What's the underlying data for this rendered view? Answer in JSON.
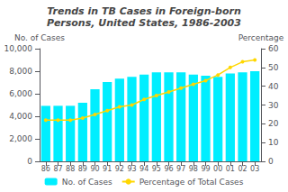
{
  "chart_data": {
    "type": "bar",
    "title": "Trends in TB Cases in Foreign-born",
    "subtitle": "Persons, United States, 1986-2003",
    "categories": [
      "86",
      "87",
      "88",
      "89",
      "90",
      "91",
      "92",
      "93",
      "94",
      "95",
      "96",
      "97",
      "98",
      "99",
      "00",
      "01",
      "02",
      "03"
    ],
    "series": [
      {
        "name": "No. of Cases",
        "type": "bar",
        "color": "#00EEFF",
        "values": [
          4925,
          4930,
          4930,
          5200,
          6400,
          7050,
          7350,
          7500,
          7700,
          7900,
          7900,
          7900,
          7700,
          7600,
          7500,
          7800,
          7900,
          8000
        ]
      },
      {
        "name": "Percentage of Total Cases",
        "type": "line",
        "color": "#FFD700",
        "marker": "circle",
        "axis": "y2",
        "values": [
          22,
          22,
          22,
          23,
          25,
          27,
          29,
          30,
          33,
          35,
          37,
          39,
          41,
          43,
          46,
          50,
          53,
          54
        ]
      }
    ],
    "ylabel": "No. of Cases",
    "y2label": "Percentage",
    "ylim": [
      0,
      10000
    ],
    "yticks": [
      0,
      {
        "value": 2000,
        "label": "2,000"
      },
      {
        "value": 4000,
        "label": "4,000"
      },
      {
        "value": 6000,
        "label": "6,000"
      },
      {
        "value": 8000,
        "label": "8,000"
      },
      {
        "value": 10000,
        "label": "10,000"
      }
    ],
    "y2lim": [
      0,
      60
    ],
    "y2ticks": [
      0,
      10,
      20,
      30,
      40,
      50,
      60
    ],
    "grid": false,
    "legend": "bottom"
  }
}
